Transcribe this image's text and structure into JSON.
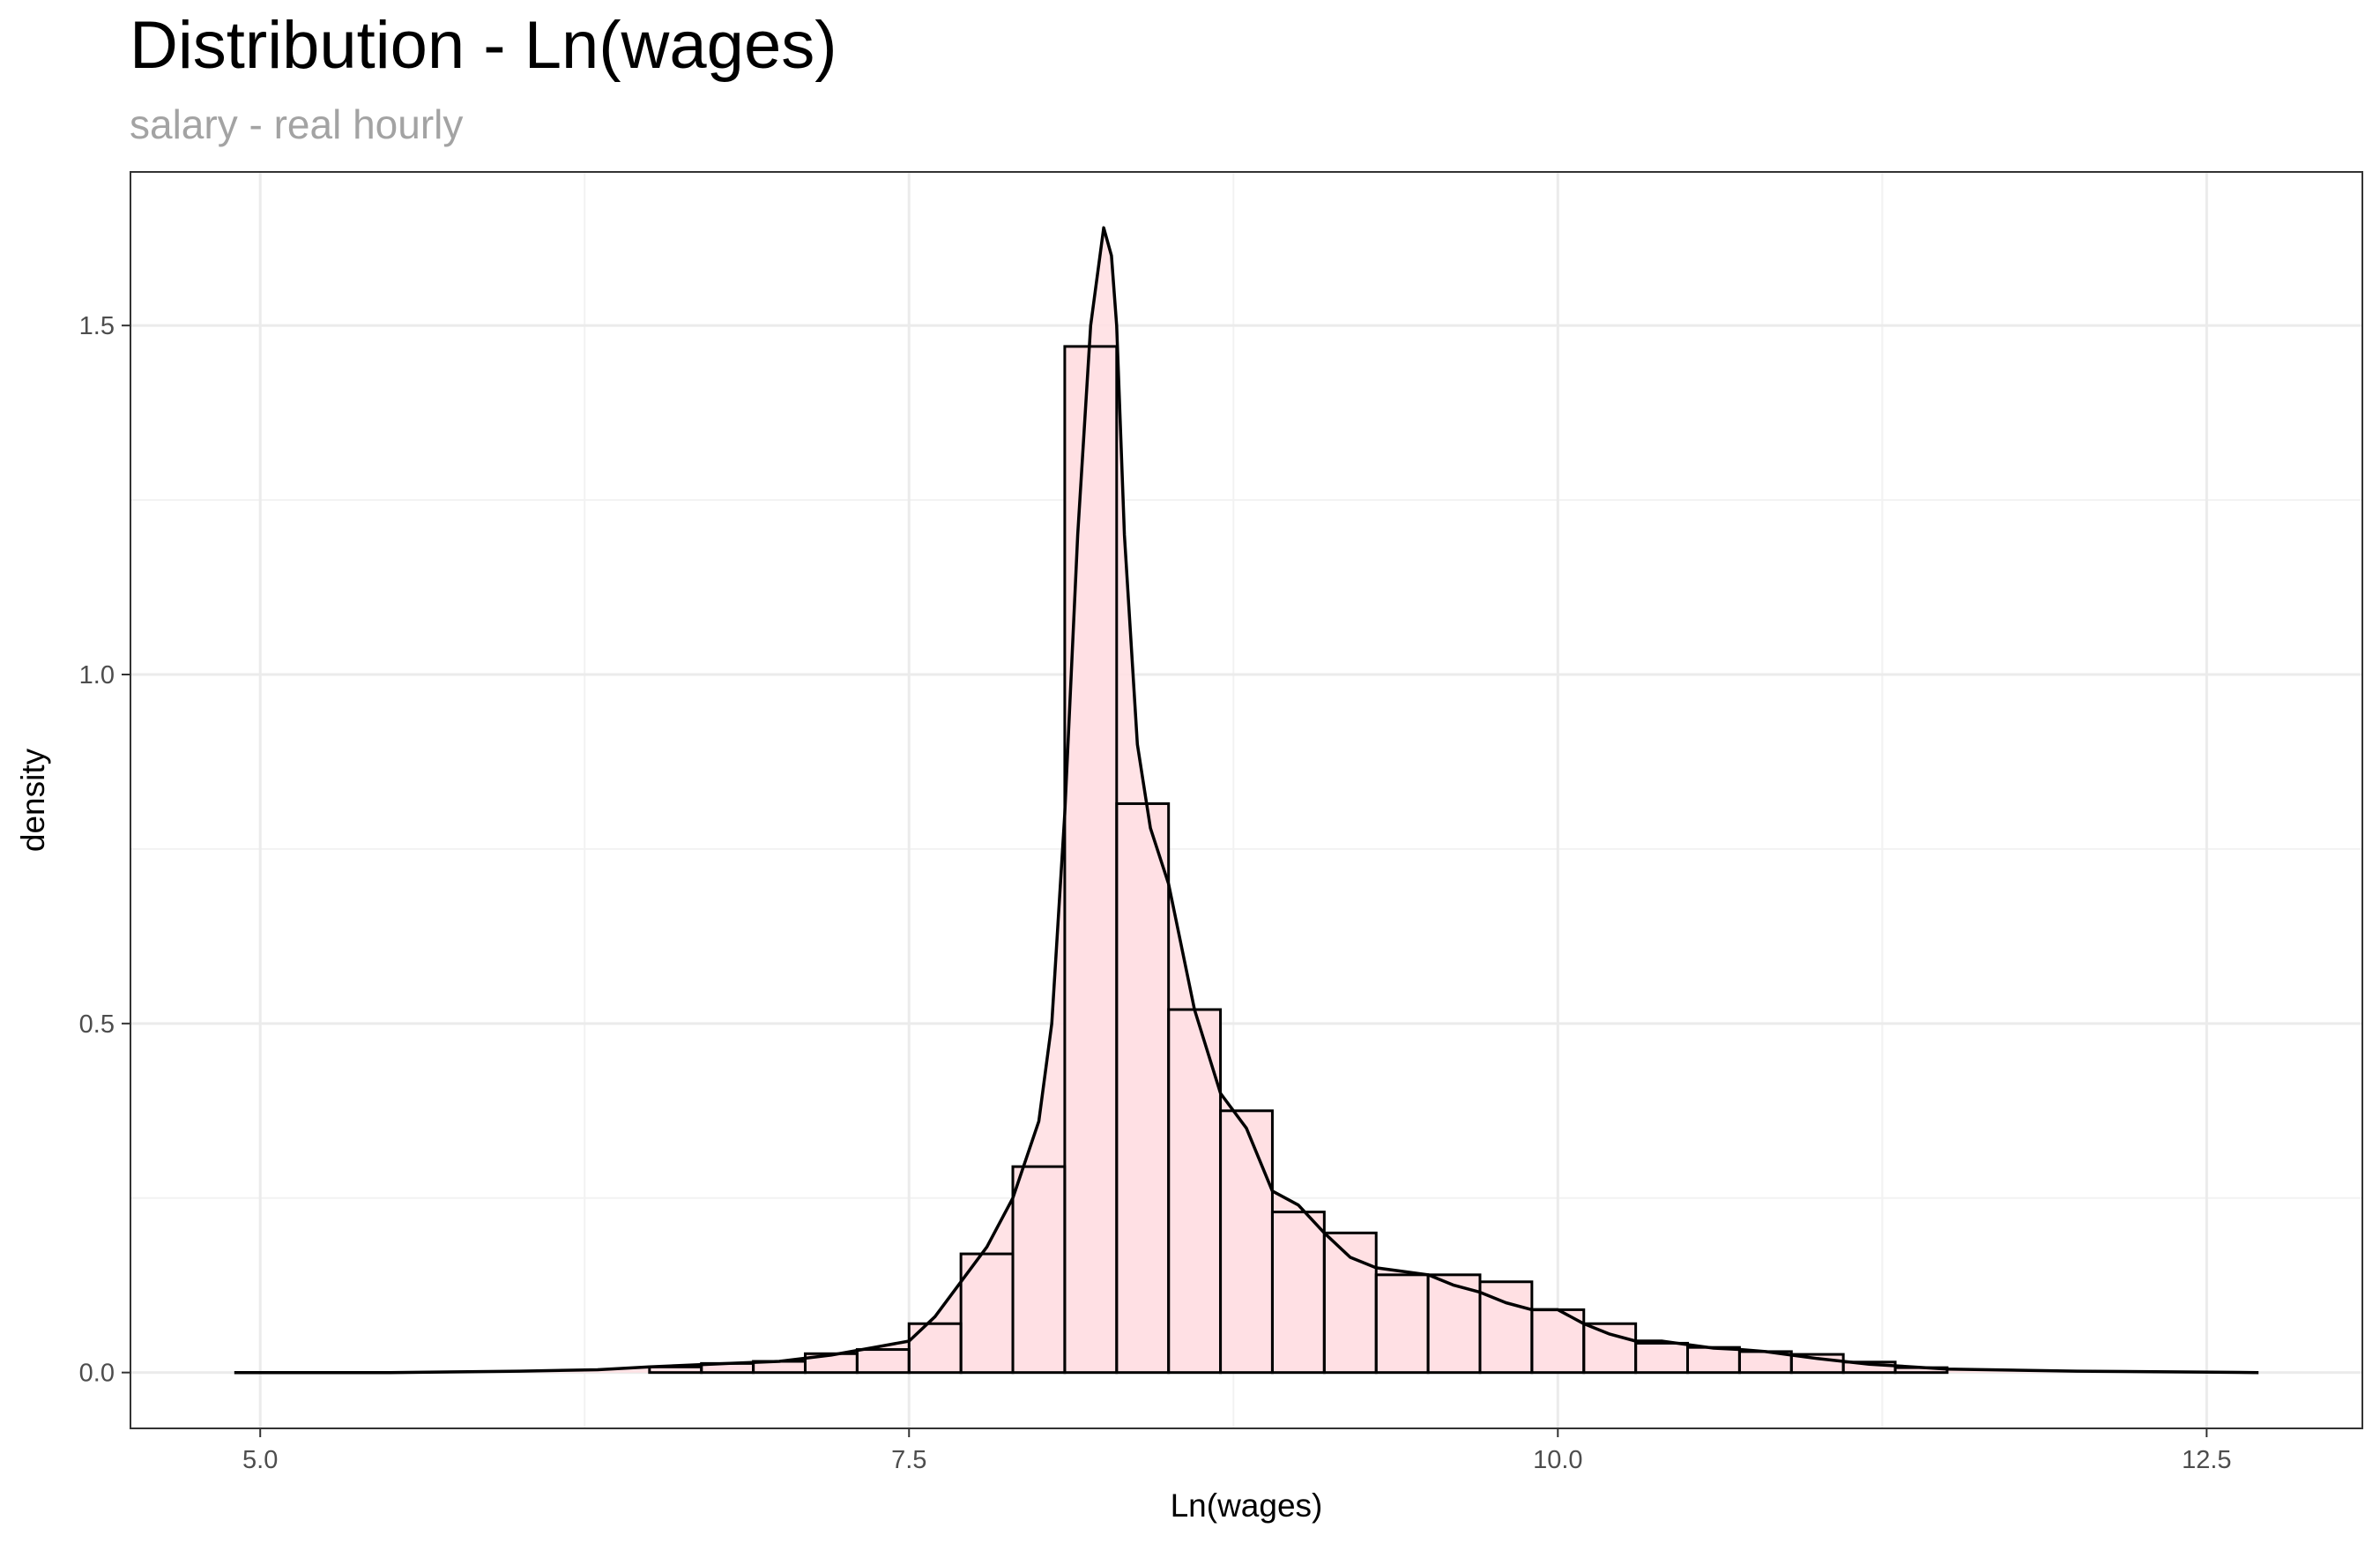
{
  "chart_data": {
    "type": "histogram",
    "title": "Distribution - Ln(wages)",
    "subtitle": "salary - real hourly",
    "xlabel": "Ln(wages)",
    "ylabel": "density",
    "xlim": [
      4.5,
      13.1
    ],
    "ylim": [
      -0.08,
      1.72
    ],
    "x_ticks": [
      5.0,
      7.5,
      10.0,
      12.5
    ],
    "x_tick_labels": [
      "5.0",
      "7.5",
      "10.0",
      "12.5"
    ],
    "y_ticks": [
      0.0,
      0.5,
      1.0,
      1.5
    ],
    "y_tick_labels": [
      "0.0",
      "0.5",
      "1.0",
      "1.5"
    ],
    "grid": true,
    "legend": "none",
    "bar_fill": "#ffe0e3",
    "bar_outline": "#000000",
    "density_color": "#000000",
    "bins": [
      {
        "x0": 6.5,
        "x1": 6.7,
        "y": 0.008
      },
      {
        "x0": 6.7,
        "x1": 6.9,
        "y": 0.013
      },
      {
        "x0": 6.9,
        "x1": 7.1,
        "y": 0.016
      },
      {
        "x0": 7.1,
        "x1": 7.3,
        "y": 0.027
      },
      {
        "x0": 7.3,
        "x1": 7.5,
        "y": 0.033
      },
      {
        "x0": 7.5,
        "x1": 7.7,
        "y": 0.07
      },
      {
        "x0": 7.7,
        "x1": 7.9,
        "y": 0.17
      },
      {
        "x0": 7.9,
        "x1": 8.1,
        "y": 0.295
      },
      {
        "x0": 8.1,
        "x1": 8.3,
        "y": 1.47
      },
      {
        "x0": 8.3,
        "x1": 8.5,
        "y": 0.815
      },
      {
        "x0": 8.5,
        "x1": 8.7,
        "y": 0.52
      },
      {
        "x0": 8.7,
        "x1": 8.9,
        "y": 0.375
      },
      {
        "x0": 8.9,
        "x1": 9.1,
        "y": 0.23
      },
      {
        "x0": 9.1,
        "x1": 9.3,
        "y": 0.2
      },
      {
        "x0": 9.3,
        "x1": 9.5,
        "y": 0.14
      },
      {
        "x0": 9.5,
        "x1": 9.7,
        "y": 0.14
      },
      {
        "x0": 9.7,
        "x1": 9.9,
        "y": 0.13
      },
      {
        "x0": 9.9,
        "x1": 10.1,
        "y": 0.09
      },
      {
        "x0": 10.1,
        "x1": 10.3,
        "y": 0.07
      },
      {
        "x0": 10.3,
        "x1": 10.5,
        "y": 0.042
      },
      {
        "x0": 10.5,
        "x1": 10.7,
        "y": 0.036
      },
      {
        "x0": 10.7,
        "x1": 10.9,
        "y": 0.03
      },
      {
        "x0": 10.9,
        "x1": 11.1,
        "y": 0.026
      },
      {
        "x0": 11.1,
        "x1": 11.3,
        "y": 0.015
      },
      {
        "x0": 11.3,
        "x1": 11.5,
        "y": 0.007
      }
    ],
    "density_curve": {
      "x": [
        4.9,
        5.5,
        6.0,
        6.3,
        6.5,
        6.8,
        7.0,
        7.2,
        7.35,
        7.5,
        7.6,
        7.7,
        7.8,
        7.9,
        8.0,
        8.05,
        8.1,
        8.15,
        8.2,
        8.25,
        8.28,
        8.3,
        8.33,
        8.38,
        8.43,
        8.5,
        8.6,
        8.7,
        8.8,
        8.9,
        9.0,
        9.1,
        9.2,
        9.3,
        9.4,
        9.5,
        9.6,
        9.7,
        9.8,
        9.9,
        10.0,
        10.1,
        10.2,
        10.3,
        10.4,
        10.5,
        10.6,
        10.7,
        10.8,
        10.9,
        11.0,
        11.2,
        11.5,
        12.0,
        12.7
      ],
      "y": [
        0.0,
        0.0,
        0.002,
        0.004,
        0.008,
        0.013,
        0.016,
        0.025,
        0.035,
        0.045,
        0.08,
        0.13,
        0.18,
        0.25,
        0.36,
        0.5,
        0.8,
        1.2,
        1.5,
        1.64,
        1.6,
        1.5,
        1.2,
        0.9,
        0.78,
        0.7,
        0.52,
        0.4,
        0.35,
        0.26,
        0.24,
        0.2,
        0.165,
        0.15,
        0.145,
        0.14,
        0.125,
        0.115,
        0.1,
        0.09,
        0.09,
        0.07,
        0.055,
        0.045,
        0.045,
        0.04,
        0.035,
        0.033,
        0.03,
        0.025,
        0.02,
        0.012,
        0.005,
        0.002,
        0.0
      ]
    }
  }
}
